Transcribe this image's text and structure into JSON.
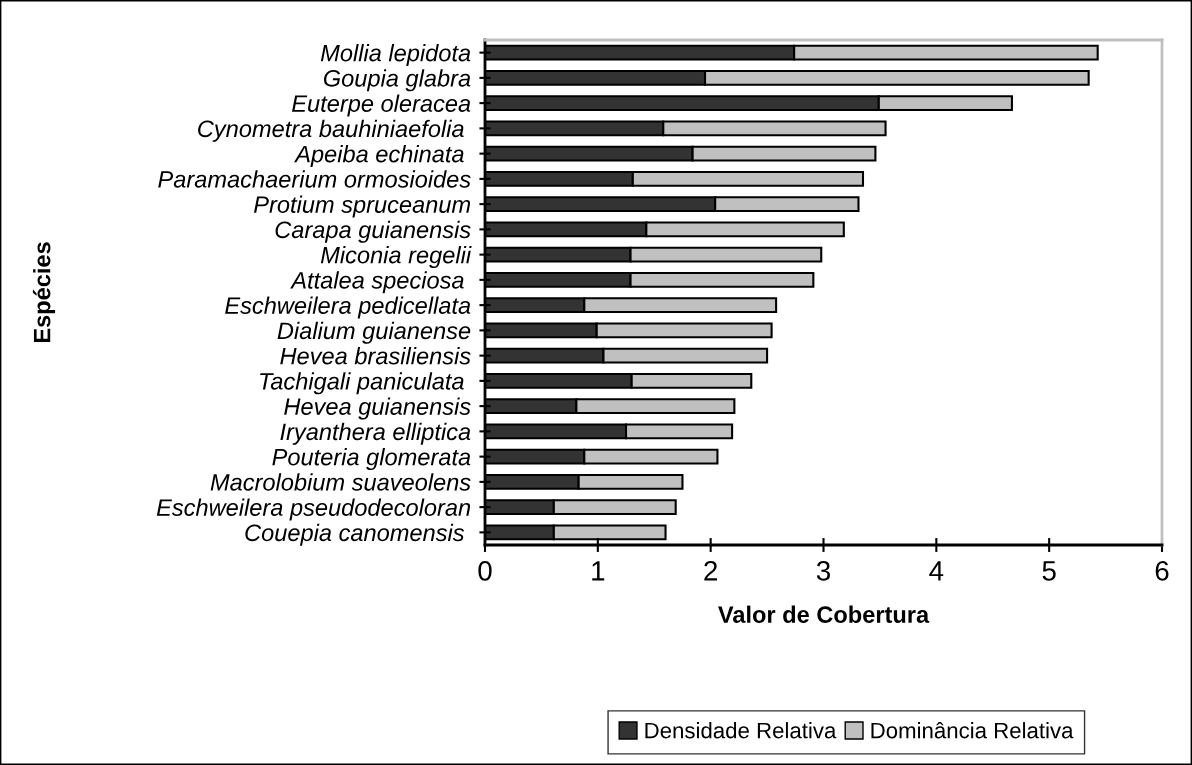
{
  "chart_data": {
    "type": "bar",
    "orientation": "horizontal",
    "stacked": true,
    "xlabel": "Valor de Cobertura",
    "ylabel": "Espécies",
    "categories": [
      "Mollia lepidota",
      "Goupia glabra",
      "Euterpe oleracea",
      "Cynometra bauhiniaefolia ",
      "Apeiba echinata ",
      "Paramachaerium ormosioides",
      "Protium spruceanum",
      "Carapa guianensis",
      "Miconia regelii",
      "Attalea speciosa ",
      "Eschweilera pedicellata",
      "Dialium guianense",
      "Hevea brasiliensis",
      "Tachigali paniculata ",
      "Hevea guianensis",
      "Iryanthera elliptica",
      "Pouteria glomerata",
      "Macrolobium suaveolens",
      "Eschweilera pseudodecoloran",
      "Couepia canomensis "
    ],
    "series": [
      {
        "name": "Densidade Relativa",
        "color": "#333333",
        "values": [
          2.74,
          1.95,
          3.49,
          1.58,
          1.84,
          1.31,
          2.04,
          1.43,
          1.29,
          1.29,
          0.88,
          0.99,
          1.05,
          1.3,
          0.81,
          1.25,
          0.88,
          0.83,
          0.61,
          0.61
        ]
      },
      {
        "name": "Dominância Relativa",
        "color": "#c0c0c0",
        "values": [
          2.69,
          3.4,
          1.18,
          1.97,
          1.62,
          2.04,
          1.27,
          1.75,
          1.69,
          1.62,
          1.7,
          1.55,
          1.45,
          1.06,
          1.4,
          0.94,
          1.18,
          0.92,
          1.08,
          0.99
        ]
      }
    ],
    "xlim": [
      0,
      6
    ],
    "xticks": [
      0,
      1,
      2,
      3,
      4,
      5,
      6
    ],
    "grid": false,
    "legend": "bottom"
  }
}
